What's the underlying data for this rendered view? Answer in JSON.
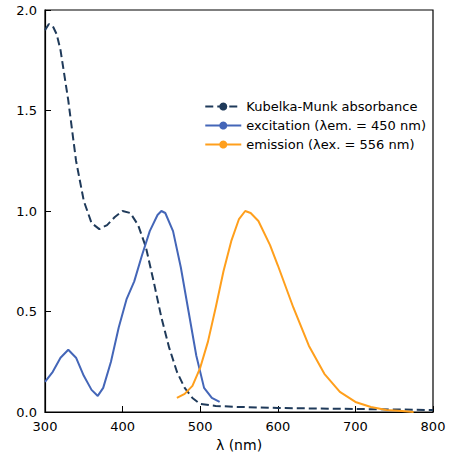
{
  "chart_data": {
    "type": "line",
    "x_label": "λ (nm)",
    "xlim": [
      300,
      800
    ],
    "xticks": [
      300,
      400,
      500,
      600,
      700,
      800
    ],
    "ylim": [
      0,
      2
    ],
    "yticks": [
      {
        "value": 0,
        "label": "0.0"
      },
      0.5,
      {
        "value": 1,
        "label": "1.0"
      },
      1.5,
      {
        "value": 2,
        "label": "2.0"
      }
    ],
    "grid": false,
    "legend": "upper right",
    "series": [
      {
        "name": "Kubelka-Munk absorbance",
        "color": "#1f3a5a",
        "line_style": "dashed",
        "x": [
          300,
          305,
          310,
          315,
          320,
          330,
          340,
          350,
          360,
          370,
          380,
          390,
          400,
          410,
          420,
          430,
          440,
          450,
          460,
          470,
          480,
          490,
          500,
          520,
          550,
          600,
          700,
          800
        ],
        "values": [
          1.9,
          1.93,
          1.92,
          1.88,
          1.8,
          1.55,
          1.25,
          1.05,
          0.94,
          0.91,
          0.93,
          0.97,
          1.0,
          0.99,
          0.93,
          0.82,
          0.65,
          0.47,
          0.32,
          0.2,
          0.12,
          0.07,
          0.04,
          0.03,
          0.025,
          0.02,
          0.015,
          0.01
        ]
      },
      {
        "name": "excitation (λem. = 450 nm)",
        "color": "#4466b8",
        "line_style": "solid",
        "x": [
          300,
          310,
          320,
          330,
          340,
          350,
          360,
          368,
          375,
          385,
          395,
          405,
          415,
          425,
          435,
          445,
          450,
          455,
          465,
          475,
          485,
          495,
          505,
          515,
          525
        ],
        "values": [
          0.15,
          0.2,
          0.27,
          0.31,
          0.27,
          0.18,
          0.11,
          0.08,
          0.12,
          0.25,
          0.42,
          0.56,
          0.65,
          0.78,
          0.9,
          0.98,
          1.0,
          0.99,
          0.9,
          0.72,
          0.5,
          0.28,
          0.12,
          0.07,
          0.05
        ]
      },
      {
        "name": "emission (λex. = 556 nm)",
        "color": "#ff9f1c",
        "line_style": "solid",
        "x": [
          470,
          480,
          490,
          500,
          510,
          520,
          530,
          540,
          550,
          558,
          565,
          575,
          590,
          600,
          620,
          640,
          660,
          680,
          700,
          720,
          740,
          760,
          775
        ],
        "values": [
          0.07,
          0.09,
          0.13,
          0.22,
          0.35,
          0.52,
          0.7,
          0.85,
          0.96,
          1.0,
          0.99,
          0.95,
          0.83,
          0.73,
          0.52,
          0.33,
          0.19,
          0.1,
          0.05,
          0.025,
          0.01,
          0.005,
          0.0
        ]
      }
    ]
  }
}
